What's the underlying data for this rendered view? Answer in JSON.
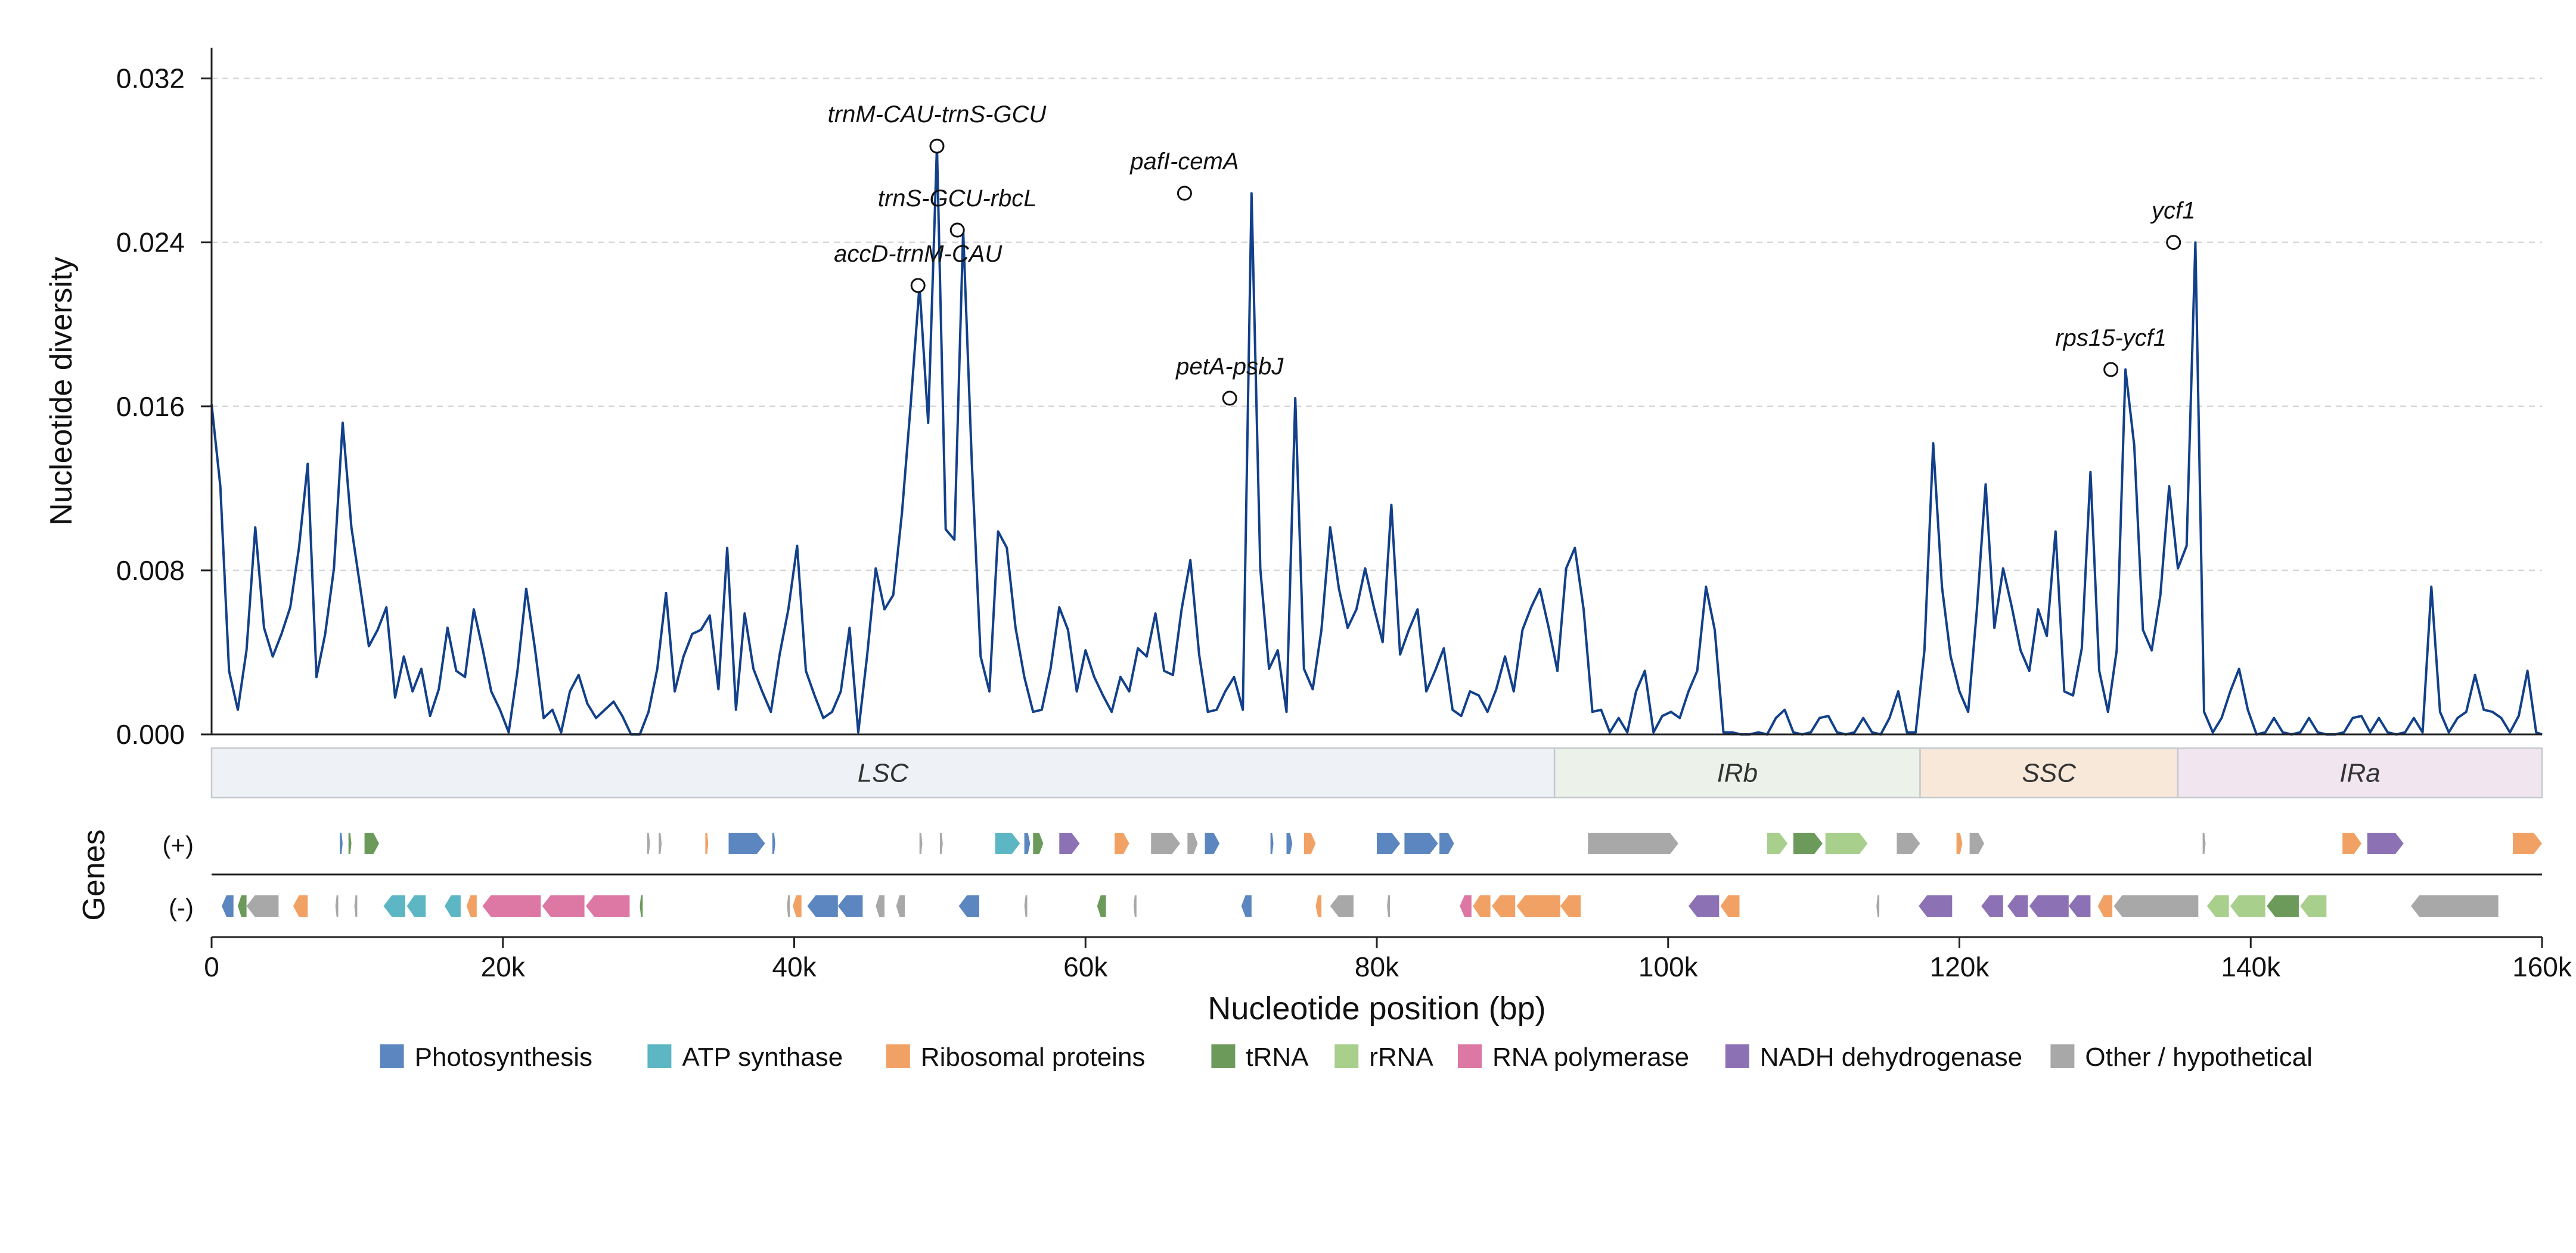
{
  "chart_data": {
    "type": "line",
    "xlabel": "Nucleotide position (bp)",
    "ylabel": "Nucleotide diversity",
    "genes_label": "Genes",
    "strand_labels": [
      "(+)",
      "(-)"
    ],
    "xlim": [
      0,
      160000
    ],
    "ylim": [
      0,
      0.0335
    ],
    "x_ticks": [
      0,
      20000,
      40000,
      60000,
      80000,
      100000,
      120000,
      140000,
      160000
    ],
    "x_tick_labels": [
      "0",
      "20k",
      "40k",
      "60k",
      "80k",
      "100k",
      "120k",
      "140k",
      "160k"
    ],
    "y_ticks": [
      0,
      0.008,
      0.016,
      0.024,
      0.032
    ],
    "y_tick_labels": [
      "0.000",
      "0.008",
      "0.016",
      "0.024",
      "0.032"
    ],
    "grid": "horizontal dashed",
    "line_color": "#12408a",
    "series": [
      {
        "x": [
          0,
          600,
          1200,
          1800,
          2400,
          3000,
          3600,
          4200,
          4800,
          5400,
          6000,
          6600,
          7200,
          7800,
          8400,
          9000,
          9600,
          10200,
          10800,
          11400,
          12000,
          12600,
          13200,
          13800,
          14400,
          15000,
          15600,
          16200,
          16800,
          17400,
          18000,
          18600,
          19200,
          19800,
          20400,
          21000,
          21600,
          22200,
          22800,
          23400,
          24000,
          24600,
          25200,
          25800,
          26400,
          27000,
          27600,
          28200,
          28800,
          29400,
          30000,
          30600,
          31200,
          31800,
          32400,
          33000,
          33600,
          34200,
          34800,
          35400,
          36000,
          36600,
          37200,
          37800,
          38400,
          39000,
          39600,
          40200,
          40800,
          41400,
          42000,
          42600,
          43200,
          43800,
          44400,
          45000,
          45600,
          46200,
          46800,
          47400,
          48000,
          48600,
          49200,
          49800,
          50400,
          51000,
          51600,
          52200,
          52800,
          53400,
          54000,
          54600,
          55200,
          55800,
          56400,
          57000,
          57600,
          58200,
          58800,
          59400,
          60000,
          60600,
          61200,
          61800,
          62400,
          63000,
          63600,
          64200,
          64800,
          65400,
          66000,
          66600,
          67200,
          67800,
          68400,
          69000,
          69600,
          70200,
          70800,
          71400,
          72000,
          72600,
          73200,
          73800,
          74400,
          75000,
          75600,
          76200,
          76800,
          77400,
          78000,
          78600,
          79200,
          79800,
          80400,
          81000,
          81600,
          82200,
          82800,
          83400,
          84000,
          84600,
          85200,
          85800,
          86400,
          87000,
          87600,
          88200,
          88800,
          89400,
          90000,
          90600,
          91200,
          91800,
          92400,
          93000,
          93600,
          94200,
          94800,
          95400,
          96000,
          96600,
          97200,
          97800,
          98400,
          99000,
          99600,
          100200,
          100800,
          101400,
          102000,
          102600,
          103200,
          103800,
          104400,
          105000,
          105600,
          106200,
          106800,
          107400,
          108000,
          108600,
          109200,
          109800,
          110400,
          111000,
          111600,
          112200,
          112800,
          113400,
          114000,
          114600,
          115200,
          115800,
          116400,
          117000,
          117600,
          118200,
          118800,
          119400,
          120000,
          120600,
          121200,
          121800,
          122400,
          123000,
          123600,
          124200,
          124800,
          125400,
          126000,
          126600,
          127200,
          127800,
          128400,
          129000,
          129600,
          130200,
          130800,
          131400,
          132000,
          132600,
          133200,
          133800,
          134400,
          135000,
          135600,
          136200,
          136800,
          137400,
          138000,
          138600,
          139200,
          139800,
          140400,
          141000,
          141600,
          142200,
          142800,
          143400,
          144000,
          144600,
          145200,
          145800,
          146400,
          147000,
          147600,
          148200,
          148800,
          149400,
          150000,
          150600,
          151200,
          151800,
          152400,
          153000,
          153600,
          154200,
          154800,
          155400,
          156000,
          156600,
          157200,
          157800,
          158400,
          159000,
          159600,
          160000
        ],
        "y": [
          0.0161,
          0.0121,
          0.0031,
          0.0012,
          0.0041,
          0.0101,
          0.0052,
          0.0038,
          0.0049,
          0.0062,
          0.0091,
          0.0132,
          0.0028,
          0.0049,
          0.0081,
          0.0152,
          0.0101,
          0.0072,
          0.0043,
          0.0051,
          0.0062,
          0.0018,
          0.0038,
          0.0021,
          0.0032,
          0.0009,
          0.0022,
          0.0052,
          0.0031,
          0.0028,
          0.0061,
          0.0042,
          0.0021,
          0.0012,
          0.0001,
          0.0031,
          0.0071,
          0.0042,
          0.0008,
          0.0012,
          0.0001,
          0.0021,
          0.0029,
          0.0015,
          0.0008,
          0.0012,
          0.0016,
          0.0009,
          0.0,
          0.0,
          0.0011,
          0.0032,
          0.0069,
          0.0021,
          0.0038,
          0.0049,
          0.0051,
          0.0058,
          0.0022,
          0.0091,
          0.0012,
          0.0059,
          0.0032,
          0.0021,
          0.0011,
          0.0039,
          0.0061,
          0.0092,
          0.0031,
          0.0019,
          0.0008,
          0.0011,
          0.0021,
          0.0052,
          0.0001,
          0.0038,
          0.0081,
          0.0061,
          0.0068,
          0.0108,
          0.0161,
          0.0219,
          0.0152,
          0.0287,
          0.01,
          0.0095,
          0.0246,
          0.0132,
          0.0038,
          0.0021,
          0.0099,
          0.0091,
          0.0052,
          0.0028,
          0.0011,
          0.0012,
          0.0032,
          0.0062,
          0.0051,
          0.0021,
          0.0041,
          0.0028,
          0.0019,
          0.0011,
          0.0028,
          0.0021,
          0.0042,
          0.0038,
          0.0059,
          0.0031,
          0.0029,
          0.0061,
          0.0085,
          0.0039,
          0.0011,
          0.0012,
          0.0021,
          0.0028,
          0.0012,
          0.0264,
          0.0081,
          0.0032,
          0.0041,
          0.0011,
          0.0164,
          0.0032,
          0.0022,
          0.0051,
          0.0101,
          0.0071,
          0.0052,
          0.0061,
          0.0081,
          0.0062,
          0.0045,
          0.0112,
          0.0039,
          0.0051,
          0.0061,
          0.0021,
          0.0031,
          0.0042,
          0.0012,
          0.0009,
          0.0021,
          0.0019,
          0.0011,
          0.0022,
          0.0038,
          0.0021,
          0.0051,
          0.0062,
          0.0071,
          0.0052,
          0.0031,
          0.0081,
          0.0091,
          0.0061,
          0.0011,
          0.0012,
          0.0001,
          0.0008,
          0.0001,
          0.0021,
          0.0031,
          0.0001,
          0.0009,
          0.0011,
          0.0008,
          0.0021,
          0.0031,
          0.0072,
          0.0051,
          0.0001,
          0.0001,
          0.0,
          0.0,
          0.0001,
          0.0,
          0.0008,
          0.0012,
          0.0001,
          0.0,
          0.0001,
          0.0008,
          0.0009,
          0.0001,
          0.0,
          0.0001,
          0.0008,
          0.0001,
          0.0,
          0.0008,
          0.0021,
          0.0001,
          0.0001,
          0.0041,
          0.0142,
          0.0072,
          0.0038,
          0.0021,
          0.0011,
          0.0061,
          0.0122,
          0.0052,
          0.0081,
          0.0062,
          0.0041,
          0.0031,
          0.0061,
          0.0048,
          0.0099,
          0.0021,
          0.0019,
          0.0042,
          0.0128,
          0.0031,
          0.0011,
          0.0041,
          0.0178,
          0.0141,
          0.0051,
          0.0041,
          0.0068,
          0.0121,
          0.0081,
          0.0092,
          0.024,
          0.0011,
          0.0001,
          0.0008,
          0.0021,
          0.0032,
          0.0012,
          0.0,
          0.0001,
          0.0008,
          0.0001,
          0.0,
          0.0001,
          0.0008,
          0.0001,
          0.0,
          0.0,
          0.0001,
          0.0008,
          0.0009,
          0.0001,
          0.0008,
          0.0001,
          0.0,
          0.0001,
          0.0008,
          0.0001,
          0.0072,
          0.0011,
          0.0001,
          0.0008,
          0.0011,
          0.0029,
          0.0012,
          0.0011,
          0.0008,
          0.0001,
          0.0009,
          0.0031,
          0.0001,
          0.0
        ]
      }
    ],
    "peaks": [
      {
        "label": "accD-trnM-CAU",
        "x": 48500,
        "y": 0.0219
      },
      {
        "label": "trnM-CAU-trnS-GCU",
        "x": 49800,
        "y": 0.0287
      },
      {
        "label": "trnS-GCU-rbcL",
        "x": 51200,
        "y": 0.0246
      },
      {
        "label": "pafI-cemA",
        "x": 66800,
        "y": 0.0264
      },
      {
        "label": "petA-psbJ",
        "x": 69900,
        "y": 0.0164
      },
      {
        "label": "rps15-ycf1",
        "x": 130400,
        "y": 0.0178
      },
      {
        "label": "ycf1",
        "x": 134700,
        "y": 0.024
      }
    ],
    "regions": [
      {
        "name": "LSC",
        "start": 0,
        "end": 92200,
        "color": "#eef2f6"
      },
      {
        "name": "IRb",
        "start": 92200,
        "end": 117300,
        "color": "#ecf2ea"
      },
      {
        "name": "SSC",
        "start": 117300,
        "end": 135000,
        "color": "#f8e8da"
      },
      {
        "name": "IRa",
        "start": 135000,
        "end": 160000,
        "color": "#f1e6f0"
      }
    ],
    "gene_categories": [
      {
        "name": "Photosynthesis",
        "color": "#5b86bf"
      },
      {
        "name": "ATP synthase",
        "color": "#5cb6c4"
      },
      {
        "name": "Ribosomal proteins",
        "color": "#f2a165"
      },
      {
        "name": "tRNA",
        "color": "#6b9a5a"
      },
      {
        "name": "rRNA",
        "color": "#a9cf8c"
      },
      {
        "name": "RNA polymerase",
        "color": "#dd77a4"
      },
      {
        "name": "NADH dehydrogenase",
        "color": "#8c72b4"
      },
      {
        "name": "Other / hypothetical",
        "color": "#a8a8a8"
      }
    ],
    "genes_plus": [
      {
        "s": 8800,
        "e": 9000,
        "c": 0
      },
      {
        "s": 9400,
        "e": 9600,
        "c": 3
      },
      {
        "s": 10500,
        "e": 11500,
        "c": 3
      },
      {
        "s": 29900,
        "e": 30100,
        "c": 7
      },
      {
        "s": 30700,
        "e": 30900,
        "c": 7
      },
      {
        "s": 33900,
        "e": 34100,
        "c": 2
      },
      {
        "s": 35500,
        "e": 38000,
        "c": 0
      },
      {
        "s": 38500,
        "e": 38700,
        "c": 0
      },
      {
        "s": 48600,
        "e": 48800,
        "c": 7
      },
      {
        "s": 50000,
        "e": 50200,
        "c": 7
      },
      {
        "s": 53800,
        "e": 55500,
        "c": 1
      },
      {
        "s": 55800,
        "e": 56200,
        "c": 0
      },
      {
        "s": 56400,
        "e": 57100,
        "c": 3
      },
      {
        "s": 58200,
        "e": 59600,
        "c": 6
      },
      {
        "s": 62000,
        "e": 63000,
        "c": 2
      },
      {
        "s": 64500,
        "e": 66500,
        "c": 7
      },
      {
        "s": 67000,
        "e": 67700,
        "c": 7
      },
      {
        "s": 68200,
        "e": 69200,
        "c": 0
      },
      {
        "s": 72700,
        "e": 72900,
        "c": 0
      },
      {
        "s": 73800,
        "e": 74200,
        "c": 0
      },
      {
        "s": 75000,
        "e": 75800,
        "c": 2
      },
      {
        "s": 80000,
        "e": 81600,
        "c": 0
      },
      {
        "s": 81900,
        "e": 84200,
        "c": 0
      },
      {
        "s": 84300,
        "e": 85300,
        "c": 0
      },
      {
        "s": 94500,
        "e": 100700,
        "c": 7
      },
      {
        "s": 106800,
        "e": 108200,
        "c": 4
      },
      {
        "s": 108600,
        "e": 110600,
        "c": 3
      },
      {
        "s": 110800,
        "e": 113700,
        "c": 4
      },
      {
        "s": 115700,
        "e": 117300,
        "c": 7
      },
      {
        "s": 119800,
        "e": 120200,
        "c": 2
      },
      {
        "s": 120700,
        "e": 121700,
        "c": 7
      },
      {
        "s": 136700,
        "e": 136900,
        "c": 7
      },
      {
        "s": 146300,
        "e": 147600,
        "c": 2
      },
      {
        "s": 148000,
        "e": 150500,
        "c": 6
      },
      {
        "s": 158000,
        "e": 160000,
        "c": 2
      }
    ],
    "genes_minus": [
      {
        "s": 700,
        "e": 1500,
        "c": 0
      },
      {
        "s": 1800,
        "e": 2400,
        "c": 3
      },
      {
        "s": 2400,
        "e": 4600,
        "c": 7
      },
      {
        "s": 5600,
        "e": 6600,
        "c": 2
      },
      {
        "s": 8500,
        "e": 8700,
        "c": 7
      },
      {
        "s": 9800,
        "e": 10000,
        "c": 7
      },
      {
        "s": 11800,
        "e": 13300,
        "c": 1
      },
      {
        "s": 13400,
        "e": 14700,
        "c": 1
      },
      {
        "s": 16000,
        "e": 17100,
        "c": 1
      },
      {
        "s": 17500,
        "e": 18200,
        "c": 2
      },
      {
        "s": 18600,
        "e": 22600,
        "c": 5
      },
      {
        "s": 22700,
        "e": 25600,
        "c": 5
      },
      {
        "s": 25700,
        "e": 28700,
        "c": 5
      },
      {
        "s": 29400,
        "e": 29600,
        "c": 3
      },
      {
        "s": 39500,
        "e": 39700,
        "c": 7
      },
      {
        "s": 39900,
        "e": 40500,
        "c": 2
      },
      {
        "s": 40900,
        "e": 43000,
        "c": 0
      },
      {
        "s": 43000,
        "e": 44700,
        "c": 0
      },
      {
        "s": 45600,
        "e": 46200,
        "c": 7
      },
      {
        "s": 47000,
        "e": 47600,
        "c": 7
      },
      {
        "s": 51300,
        "e": 52700,
        "c": 0
      },
      {
        "s": 55800,
        "e": 56000,
        "c": 7
      },
      {
        "s": 60800,
        "e": 61400,
        "c": 3
      },
      {
        "s": 63300,
        "e": 63500,
        "c": 7
      },
      {
        "s": 70700,
        "e": 71400,
        "c": 0
      },
      {
        "s": 75800,
        "e": 76200,
        "c": 2
      },
      {
        "s": 76800,
        "e": 78400,
        "c": 7
      },
      {
        "s": 80700,
        "e": 80900,
        "c": 7
      },
      {
        "s": 85700,
        "e": 86500,
        "c": 5
      },
      {
        "s": 86600,
        "e": 87800,
        "c": 2
      },
      {
        "s": 87900,
        "e": 89500,
        "c": 2
      },
      {
        "s": 89600,
        "e": 92600,
        "c": 2
      },
      {
        "s": 92600,
        "e": 94000,
        "c": 2
      },
      {
        "s": 101400,
        "e": 103500,
        "c": 6
      },
      {
        "s": 103600,
        "e": 104900,
        "c": 2
      },
      {
        "s": 114300,
        "e": 114500,
        "c": 7
      },
      {
        "s": 117200,
        "e": 119500,
        "c": 6
      },
      {
        "s": 121500,
        "e": 123000,
        "c": 6
      },
      {
        "s": 123300,
        "e": 124700,
        "c": 6
      },
      {
        "s": 124800,
        "e": 127500,
        "c": 6
      },
      {
        "s": 127500,
        "e": 129000,
        "c": 6
      },
      {
        "s": 129500,
        "e": 130500,
        "c": 2
      },
      {
        "s": 130600,
        "e": 136400,
        "c": 7
      },
      {
        "s": 137000,
        "e": 138500,
        "c": 4
      },
      {
        "s": 138600,
        "e": 141000,
        "c": 4
      },
      {
        "s": 141100,
        "e": 143300,
        "c": 3
      },
      {
        "s": 143400,
        "e": 145200,
        "c": 4
      },
      {
        "s": 151000,
        "e": 157000,
        "c": 7
      }
    ]
  }
}
